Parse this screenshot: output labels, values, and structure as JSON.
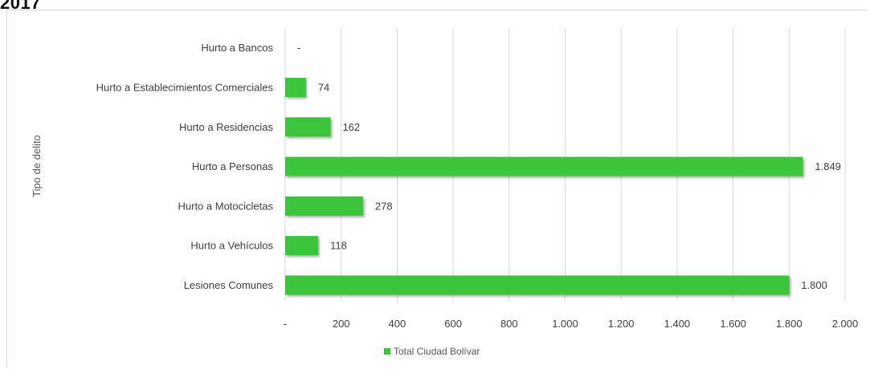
{
  "heading": "2017",
  "chart_data": {
    "type": "bar",
    "orientation": "horizontal",
    "ylabel": "Tipo de delito",
    "categories": [
      "Hurto a Bancos",
      "Hurto a Establecimientos Comerciales",
      "Hurto a Residencias",
      "Hurto a Personas",
      "Hurto a Motocicletas",
      "Hurto a Vehículos",
      "Lesiones Comunes"
    ],
    "series": [
      {
        "name": "Total Ciudad Bolívar",
        "color": "#3cc43c",
        "values": [
          0,
          74,
          162,
          1849,
          278,
          118,
          1800
        ],
        "data_labels": [
          "-",
          "74",
          "162",
          "1.849",
          "278",
          "118",
          "1.800"
        ]
      }
    ],
    "xlim": [
      0,
      2000
    ],
    "x_ticks": [
      0,
      200,
      400,
      600,
      800,
      1000,
      1200,
      1400,
      1600,
      1800,
      2000
    ],
    "x_tick_labels": [
      "-",
      "200",
      "400",
      "600",
      "800",
      "1.000",
      "1.200",
      "1.400",
      "1.600",
      "1.800",
      "2.000"
    ],
    "grid": "vertical",
    "legend": "bottom"
  }
}
